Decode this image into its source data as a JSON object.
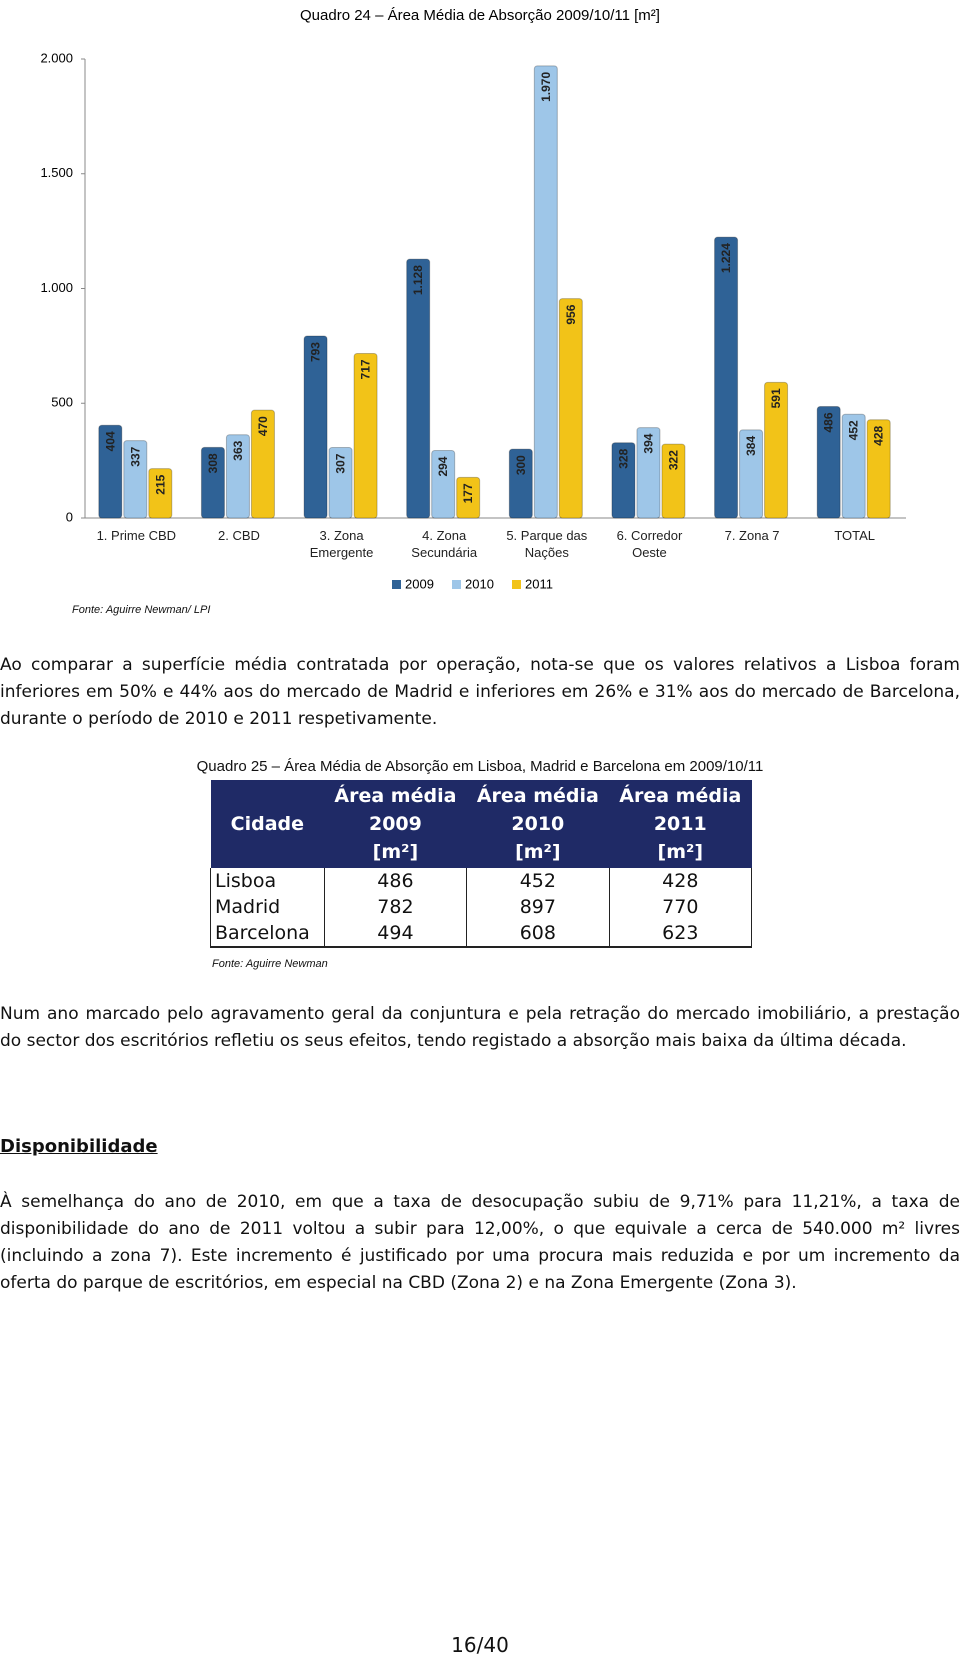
{
  "chart_data": {
    "type": "bar",
    "title": "Quadro 24 – Área Média de Absorção 2009/10/11 [m²]",
    "categories": [
      "1. Prime CBD",
      "2. CBD",
      "3. Zona Emergente",
      "4. Zona Secundária",
      "5. Parque das Nações",
      "6. Corredor Oeste",
      "7. Zona 7",
      "TOTAL"
    ],
    "series": [
      {
        "name": "2009",
        "color": "#2f6296",
        "values": [
          404,
          308,
          793,
          1128,
          300,
          328,
          1224,
          486
        ],
        "value_labels": [
          "404",
          "308",
          "793",
          "1.128",
          "300",
          "328",
          "1.224",
          "486"
        ]
      },
      {
        "name": "2010",
        "color": "#9ec6e8",
        "values": [
          337,
          363,
          307,
          294,
          1970,
          394,
          384,
          452
        ],
        "value_labels": [
          "337",
          "363",
          "307",
          "294",
          "1.970",
          "394",
          "384",
          "452"
        ]
      },
      {
        "name": "2011",
        "color": "#f2c318",
        "values": [
          215,
          470,
          717,
          177,
          956,
          322,
          591,
          428
        ],
        "value_labels": [
          "215",
          "470",
          "717",
          "177",
          "956",
          "322",
          "591",
          "428"
        ]
      }
    ],
    "ylim": [
      0,
      2000
    ],
    "yticks": [
      0,
      500,
      {
        "value": 1000,
        "label": "1.000"
      },
      {
        "value": 1500,
        "label": "1.500"
      },
      {
        "value": 2000,
        "label": "2.000"
      }
    ],
    "legend": "bottom",
    "source": "Fonte: Aguirre Newman/ LPI"
  },
  "paragraphs": [
    "Ao comparar a superfície média contratada por operação, nota-se que os valores relativos a Lisboa foram inferiores em 50% e 44% aos do mercado de Madrid e inferiores em 26% e 31% aos do mercado de Barcelona, durante o período de 2010 e 2011 respetivamente.",
    "Num ano marcado pelo agravamento geral da conjuntura e pela retração do mercado imobiliário, a prestação do sector dos escritórios refletiu os seus efeitos, tendo registado a absorção mais baixa da última década."
  ],
  "table": {
    "caption": "Quadro 25 – Área Média de Absorção em Lisboa, Madrid e Barcelona em 2009/10/11",
    "header": [
      [
        "Cidade"
      ],
      [
        "Área média",
        "2009",
        "[m²]"
      ],
      [
        "Área média",
        "2010",
        "[m²]"
      ],
      [
        "Área média",
        "2011",
        "[m²]"
      ]
    ],
    "rows": [
      [
        "Lisboa",
        486,
        452,
        428
      ],
      [
        "Madrid",
        782,
        897,
        770
      ],
      [
        "Barcelona",
        494,
        608,
        623
      ]
    ],
    "source": "Fonte: Aguirre Newman"
  },
  "section": {
    "heading": "Disponibilidade",
    "text": "À semelhança do ano de 2010, em que a taxa de desocupação subiu de 9,71% para 11,21%, a taxa de disponibilidade do ano de 2011 voltou a subir para 12,00%, o que equivale a cerca de 540.000 m² livres (incluindo a zona 7). Este incremento é justificado por uma procura mais reduzida e por um incremento da oferta do parque de escritórios, em especial na CBD (Zona 2) e na Zona Emergente (Zona 3)."
  },
  "page_number": "16/40"
}
